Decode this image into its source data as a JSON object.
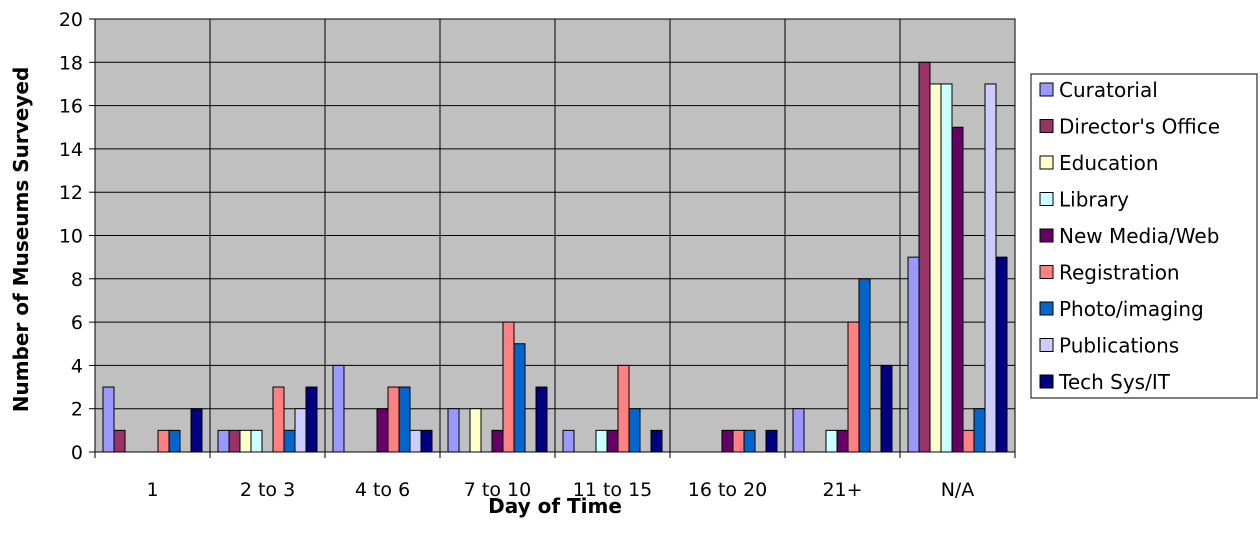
{
  "chart_data": {
    "type": "bar",
    "title": "",
    "xlabel": "Day of Time",
    "ylabel": "Number of Museums Surveyed",
    "ylim": [
      0,
      20
    ],
    "ytick_step": 2,
    "grid": true,
    "legend_position": "right",
    "plot_background": "#c0c0c0",
    "categories": [
      "1",
      "2 to 3",
      "4 to 6",
      "7 to 10",
      "11 to 15",
      "16 to 20",
      "21+",
      "N/A"
    ],
    "series": [
      {
        "name": "Curatorial",
        "color": "#9999ff",
        "values": [
          3,
          1,
          4,
          2,
          1,
          0,
          2,
          9
        ]
      },
      {
        "name": "Director's Office",
        "color": "#993366",
        "values": [
          1,
          1,
          0,
          0,
          0,
          0,
          0,
          18
        ]
      },
      {
        "name": "Education",
        "color": "#ffffcc",
        "values": [
          0,
          1,
          0,
          2,
          0,
          0,
          0,
          17
        ]
      },
      {
        "name": "Library",
        "color": "#ccffff",
        "values": [
          0,
          1,
          0,
          0,
          1,
          0,
          1,
          17
        ]
      },
      {
        "name": "New Media/Web",
        "color": "#660066",
        "values": [
          0,
          0,
          2,
          1,
          1,
          1,
          1,
          15
        ]
      },
      {
        "name": "Registration",
        "color": "#ff8080",
        "values": [
          1,
          3,
          3,
          6,
          4,
          1,
          6,
          1
        ]
      },
      {
        "name": "Photo/imaging",
        "color": "#0066cc",
        "values": [
          1,
          1,
          3,
          5,
          2,
          1,
          8,
          2
        ]
      },
      {
        "name": "Publications",
        "color": "#ccccff",
        "values": [
          0,
          2,
          1,
          0,
          0,
          0,
          0,
          17
        ]
      },
      {
        "name": "Tech Sys/IT",
        "color": "#000080",
        "values": [
          2,
          3,
          1,
          3,
          1,
          1,
          4,
          9
        ]
      }
    ]
  }
}
